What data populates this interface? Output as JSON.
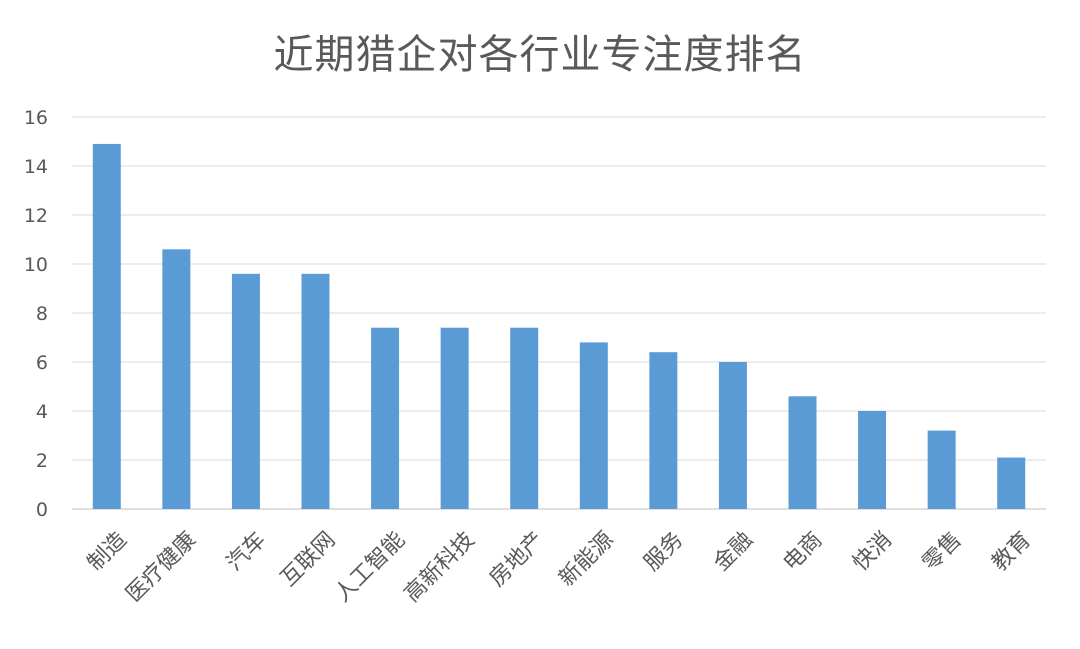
{
  "chart_data": {
    "type": "bar",
    "title": "近期猎企对各行业专注度排名",
    "xlabel": "",
    "ylabel": "",
    "categories": [
      "制造",
      "医疗健康",
      "汽车",
      "互联网",
      "人工智能",
      "高新科技",
      "房地产",
      "新能源",
      "服务",
      "金融",
      "电商",
      "快消",
      "零售",
      "教育"
    ],
    "values": [
      14.9,
      10.6,
      9.6,
      9.6,
      7.4,
      7.4,
      7.4,
      6.8,
      6.4,
      6.0,
      4.6,
      4.0,
      3.2,
      2.1
    ],
    "ylim": [
      0,
      16
    ],
    "yticks": [
      0,
      2,
      4,
      6,
      8,
      10,
      12,
      14,
      16
    ],
    "grid": true,
    "legend": "none",
    "bar_color": "#5B9BD5",
    "grid_color": "#D9D9D9",
    "text_color": "#595959"
  }
}
